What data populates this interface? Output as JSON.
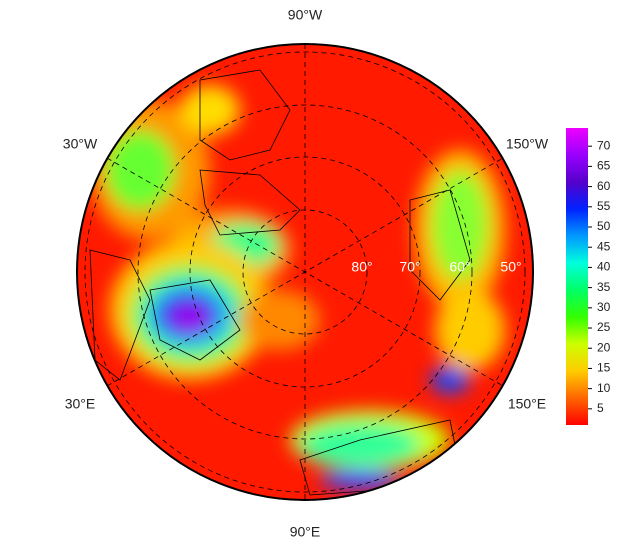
{
  "map": {
    "lon_labels": [
      "90°W",
      "30°W",
      "150°W",
      "30°E",
      "150°E",
      "90°E"
    ],
    "lat_labels": [
      "80°",
      "70°",
      "60°",
      "50°"
    ]
  },
  "colorbar": {
    "range": [
      1,
      74.5
    ],
    "ticks": [
      5,
      10,
      15,
      20,
      25,
      30,
      35,
      40,
      45,
      50,
      55,
      60,
      65,
      70
    ],
    "colors": [
      "#ff0000",
      "#ff6600",
      "#ffcc00",
      "#ccff00",
      "#33ff00",
      "#00ff66",
      "#00ffdd",
      "#0099ff",
      "#0022ff",
      "#5500cc",
      "#9900ff",
      "#ee00ff"
    ]
  }
}
